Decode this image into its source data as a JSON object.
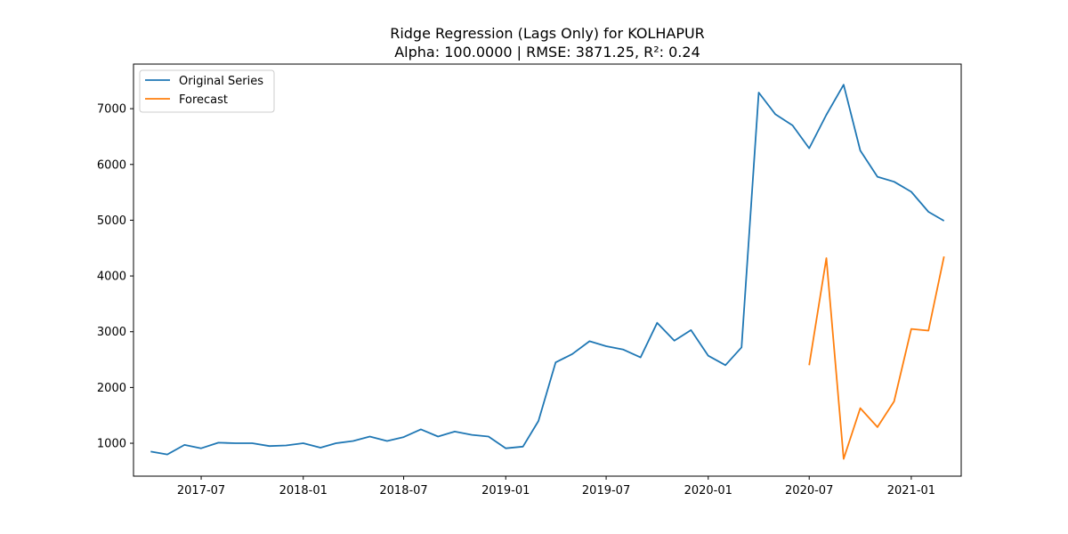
{
  "chart_data": {
    "type": "line",
    "title": "Ridge Regression (Lags Only) for KOLHAPUR",
    "subtitle": "Alpha: 100.0000 | RMSE: 3871.25, R²: 0.24",
    "xlabel": "",
    "ylabel": "",
    "xlim": [
      "2017-03-01",
      "2021-04-01"
    ],
    "ylim": [
      410,
      7800
    ],
    "x_ticks": [
      "2017-07-01",
      "2018-01-01",
      "2018-07-01",
      "2019-01-01",
      "2019-07-01",
      "2020-01-01",
      "2020-07-01",
      "2021-01-01"
    ],
    "x_tick_labels": [
      "2017-07",
      "2018-01",
      "2018-07",
      "2019-01",
      "2019-07",
      "2020-01",
      "2020-07",
      "2021-01"
    ],
    "y_ticks": [
      1000,
      2000,
      3000,
      4000,
      5000,
      6000,
      7000
    ],
    "y_tick_labels": [
      "1000",
      "2000",
      "3000",
      "4000",
      "5000",
      "6000",
      "7000"
    ],
    "grid": false,
    "legend_position": "upper-left",
    "series": [
      {
        "name": "Original Series",
        "color": "#1f77b4",
        "x": [
          "2017-04-01",
          "2017-05-01",
          "2017-06-01",
          "2017-07-01",
          "2017-08-01",
          "2017-09-01",
          "2017-10-01",
          "2017-11-01",
          "2017-12-01",
          "2018-01-01",
          "2018-02-01",
          "2018-03-01",
          "2018-04-01",
          "2018-05-01",
          "2018-06-01",
          "2018-07-01",
          "2018-08-01",
          "2018-09-01",
          "2018-10-01",
          "2018-11-01",
          "2018-12-01",
          "2019-01-01",
          "2019-02-01",
          "2019-03-01",
          "2019-04-01",
          "2019-05-01",
          "2019-06-01",
          "2019-07-01",
          "2019-08-01",
          "2019-09-01",
          "2019-10-01",
          "2019-11-01",
          "2019-12-01",
          "2020-01-01",
          "2020-02-01",
          "2020-03-01",
          "2020-04-01",
          "2020-05-01",
          "2020-06-01",
          "2020-07-01",
          "2020-08-01",
          "2020-09-01",
          "2020-10-01",
          "2020-11-01",
          "2020-12-01",
          "2021-01-01",
          "2021-02-01",
          "2021-03-01"
        ],
        "values": [
          850,
          800,
          970,
          910,
          1010,
          1000,
          1000,
          950,
          960,
          1000,
          920,
          1000,
          1040,
          1120,
          1040,
          1110,
          1250,
          1120,
          1210,
          1150,
          1120,
          910,
          940,
          1400,
          2450,
          2600,
          2830,
          2740,
          2680,
          2540,
          3160,
          2840,
          3030,
          2570,
          2400,
          2720,
          7290,
          6900,
          6700,
          6290,
          6890,
          7430,
          6250,
          5780,
          5690,
          5510,
          5150,
          4990
        ]
      },
      {
        "name": "Forecast",
        "color": "#ff7f0e",
        "x": [
          "2020-07-01",
          "2020-08-01",
          "2020-09-01",
          "2020-10-01",
          "2020-11-01",
          "2020-12-01",
          "2021-01-01",
          "2021-02-01",
          "2021-03-01"
        ],
        "values": [
          2400,
          4320,
          720,
          1630,
          1290,
          1750,
          3050,
          3020,
          4350
        ]
      }
    ]
  }
}
